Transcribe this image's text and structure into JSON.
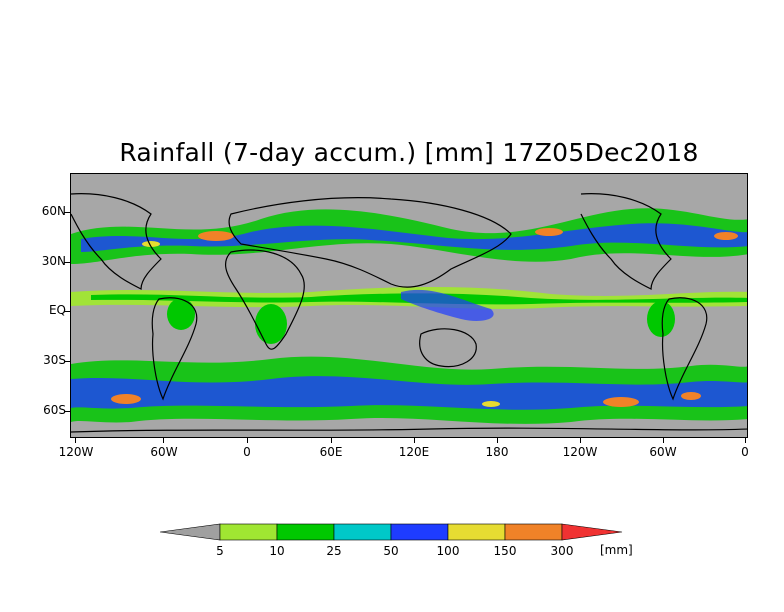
{
  "title": "Rainfall (7-day accum.) [mm] 17Z05Dec2018",
  "lat_labels": [
    "60N",
    "30N",
    "EQ",
    "30S",
    "60S"
  ],
  "lon_labels": [
    "120W",
    "60W",
    "0",
    "60E",
    "120E",
    "180",
    "120W",
    "60W",
    "0"
  ],
  "colorbar": {
    "labels": [
      "5",
      "10",
      "25",
      "50",
      "100",
      "150",
      "300"
    ],
    "unit": "[mm]",
    "colors": [
      "#a0a0a0",
      "#a0e632",
      "#00c800",
      "#00c8c8",
      "#1e3cff",
      "#e6dc32",
      "#f08228",
      "#f03232"
    ]
  },
  "colors": {
    "no_rain": "#a7a7a7",
    "light": "#a0e632",
    "moderate": "#00c800",
    "heavy": "#1e3cff",
    "extreme": "#f08228"
  }
}
